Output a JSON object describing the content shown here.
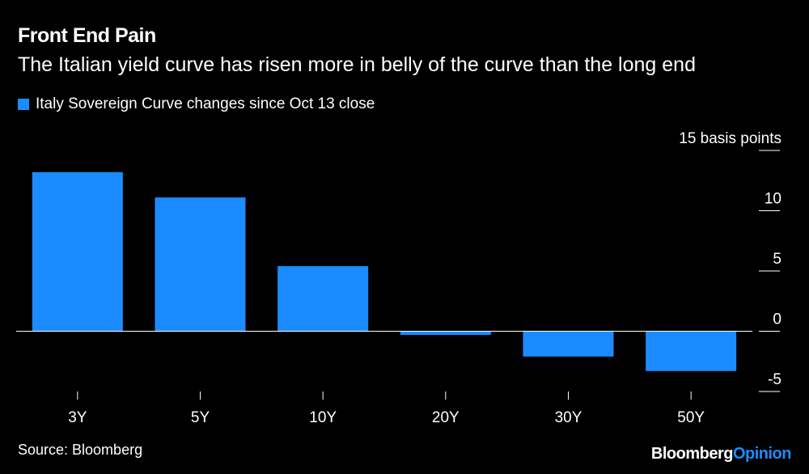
{
  "header": {
    "title": "Front End Pain",
    "subtitle": "The Italian yield curve has risen more in belly of the curve than the long end"
  },
  "legend": {
    "label": "Italy Sovereign Curve changes since Oct 13 close",
    "color": "#1a8cff"
  },
  "footer": {
    "source": "Source: Bloomberg",
    "logo_primary": "Bloomberg",
    "logo_secondary": "Opinion"
  },
  "chart_data": {
    "type": "bar",
    "title": "Front End Pain",
    "subtitle": "The Italian yield curve has risen more in belly of the curve than the long end",
    "categories": [
      "3Y",
      "5Y",
      "10Y",
      "20Y",
      "30Y",
      "50Y"
    ],
    "series": [
      {
        "name": "Italy Sovereign Curve changes since Oct 13 close",
        "values": [
          13.2,
          11.1,
          5.4,
          -0.3,
          -2.1,
          -3.3
        ],
        "color": "#1a8cff"
      }
    ],
    "ylim": [
      -5,
      15
    ],
    "yticks": [
      -5,
      0,
      5,
      10,
      15
    ],
    "ytick_labels": [
      "-5",
      "0",
      "5",
      "10",
      "15 basis points"
    ],
    "ylabel": "basis points",
    "xlabel": "",
    "grid": false,
    "legend_position": "top-left"
  }
}
